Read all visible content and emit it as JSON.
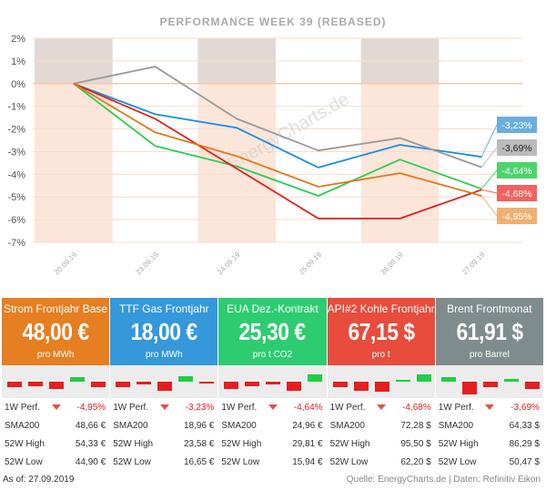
{
  "chart_data": {
    "type": "line",
    "title": "PERFORMANCE   WEEK 39 (REBASED)",
    "watermark": "EnergyCharts.de",
    "x": [
      "20.09.19",
      "23.09.19",
      "24.09.19",
      "25.09.19",
      "26.09.19",
      "27.09.19"
    ],
    "ylim": [
      -7,
      2
    ],
    "yticks": [
      "2%",
      "1%",
      "0%",
      "-1%",
      "-2%",
      "-3%",
      "-4%",
      "-5%",
      "-6%",
      "-7%"
    ],
    "shaded_x": [
      "20.09.19",
      "24.09.19",
      "26.09.19"
    ],
    "series": [
      {
        "color": "#1a8fe0",
        "values": [
          0,
          -1.35,
          -1.95,
          -3.7,
          -2.7,
          -3.23
        ],
        "label": "-3,23%"
      },
      {
        "color": "#999999",
        "values": [
          0,
          0.75,
          -1.55,
          -2.95,
          -2.4,
          -3.69
        ],
        "label": "-3,69%"
      },
      {
        "color": "#2ecc55",
        "values": [
          0,
          -2.75,
          -3.65,
          -4.95,
          -3.35,
          -4.64
        ],
        "label": "-4,64%"
      },
      {
        "color": "#e31f1f",
        "values": [
          0,
          -1.55,
          -3.75,
          -5.95,
          -5.95,
          -4.68
        ],
        "label": "-4,68%"
      },
      {
        "color": "#e07a1f",
        "values": [
          0,
          -2.15,
          -3.2,
          -4.55,
          -3.95,
          -4.95
        ],
        "label": "-4,95%"
      }
    ],
    "label_colors": [
      "#6aaee0",
      "#bbbbbb",
      "#4cd46c",
      "#f0635e",
      "#f0b070"
    ]
  },
  "cards": [
    {
      "title": "Strom Frontjahr Base",
      "value": "48,00 €",
      "unit": "pro MWh",
      "color": "#e67e22",
      "perf_label": "1W Perf.",
      "perf": "-4,95%",
      "sma_label": "SMA200",
      "sma": "48,66 €",
      "high_label": "52W High",
      "high": "54,33 €",
      "low_label": "52W Low",
      "low": "44,90 €",
      "mini": [
        -0.4,
        -0.3,
        -0.5,
        0.3,
        -0.4
      ]
    },
    {
      "title": "TTF Gas Frontjahr",
      "value": "18,00 €",
      "unit": "pro MWh",
      "color": "#3498db",
      "perf_label": "1W Perf.",
      "perf": "-3,23%",
      "sma_label": "SMA200",
      "sma": "18,96 €",
      "high_label": "52W High",
      "high": "23,58 €",
      "low_label": "52W Low",
      "low": "16,65 €",
      "mini": [
        -0.4,
        -0.2,
        -0.6,
        0.4,
        -0.1
      ]
    },
    {
      "title": "EUA Dez.-Kontrakt",
      "value": "25,30 €",
      "unit": "pro t CO2",
      "color": "#2ecc71",
      "perf_label": "1W Perf.",
      "perf": "-4,64%",
      "sma_label": "SMA200",
      "sma": "24,96 €",
      "high_label": "52W High",
      "high": "29,81 €",
      "low_label": "52W Low",
      "low": "15,94 €",
      "mini": [
        -0.5,
        -0.3,
        -0.2,
        -0.6,
        0.5
      ]
    },
    {
      "title": "API#2 Kohle Frontjahr",
      "value": "67,15 $",
      "unit": "pro t",
      "color": "#e74c3c",
      "perf_label": "1W Perf.",
      "perf": "-4,68%",
      "sma_label": "SMA200",
      "sma": "72,28 $",
      "high_label": "52W High",
      "high": "95,50 $",
      "low_label": "52W Low",
      "low": "62,20 $",
      "mini": [
        -0.4,
        -0.6,
        -0.7,
        0.0,
        0.5
      ]
    },
    {
      "title": "Brent Frontmonat",
      "value": "61,91 $",
      "unit": "pro Barrel",
      "color": "#7f8c8d",
      "perf_label": "1W Perf.",
      "perf": "-3,69%",
      "sma_label": "SMA200",
      "sma": "64,33 $",
      "high_label": "52W High",
      "high": "86,29 $",
      "low_label": "52W Low",
      "low": "50,47 $",
      "mini": [
        0.3,
        -0.9,
        -0.4,
        0.2,
        -0.5
      ]
    }
  ],
  "footer": {
    "asof": "As of: 27.09.2019",
    "source": "Quelle: EnergyCharts.de | Daten: Refinitiv Eikon"
  }
}
